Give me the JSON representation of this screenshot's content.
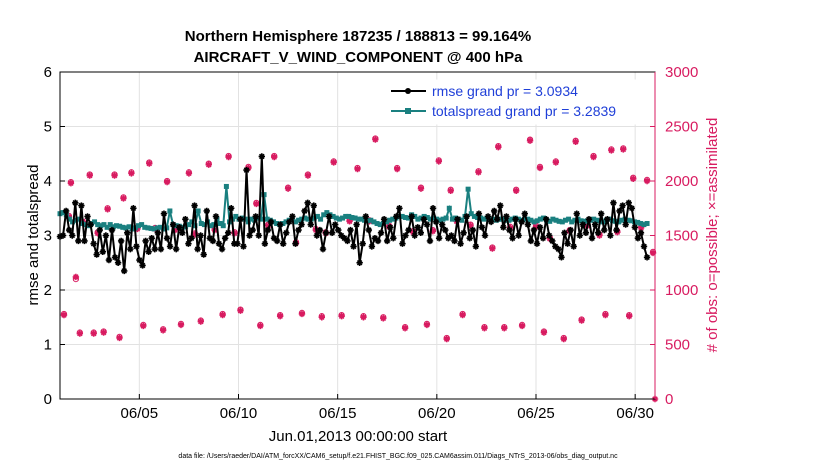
{
  "chart_data": {
    "type": "line",
    "title": "Northern Hemisphere 187235 / 188813 = 99.164%",
    "subtitle": "AIRCRAFT_V_WIND_COMPONENT @ 400 hPa",
    "xlabel": "Jun.01,2013 00:00:00 start",
    "ylabel_left": "rmse and totalspread",
    "ylabel_right": "# of obs: o=possible; ×=assimilated",
    "x_tick_labels": [
      "06/05",
      "06/10",
      "06/15",
      "06/20",
      "06/25",
      "06/30"
    ],
    "x_tick_days": [
      5,
      10,
      15,
      20,
      25,
      30
    ],
    "xlim": [
      1,
      31
    ],
    "ylim_left": [
      0,
      6
    ],
    "ylim_right": [
      0,
      3000
    ],
    "y_ticks_left": [
      "0",
      "1",
      "2",
      "3",
      "4",
      "5",
      "6"
    ],
    "y_ticks_right": [
      "0",
      "500",
      "1000",
      "1500",
      "2000",
      "2500",
      "3000"
    ],
    "footnote": "data file: /Users/raeder/DAI/ATM_forcXX/CAM6_setup/f.e21.FHIST_BGC.f09_025.CAM6assim.011/Diags_NTrS_2013-06/obs_diag_output.nc",
    "colors": {
      "rmse": "#000000",
      "spread": "#1a8080",
      "obs": "#d81b60"
    },
    "series": [
      {
        "name": "rmse",
        "legend": "rmse grand pr = 3.0934",
        "axis": "left",
        "marker": "star",
        "values": [
          2.98,
          3.0,
          3.45,
          3.1,
          3.0,
          3.6,
          2.9,
          3.55,
          2.9,
          3.35,
          3.2,
          2.85,
          2.65,
          3.1,
          2.7,
          3.0,
          2.55,
          3.1,
          2.6,
          2.5,
          2.9,
          2.35,
          3.05,
          2.75,
          3.5,
          2.8,
          2.55,
          2.45,
          2.9,
          2.7,
          2.95,
          2.75,
          3.05,
          2.75,
          3.4,
          2.95,
          2.8,
          3.2,
          2.75,
          3.15,
          3.05,
          3.3,
          2.85,
          2.95,
          3.55,
          2.75,
          3.0,
          2.65,
          3.45,
          2.95,
          2.9,
          3.35,
          2.85,
          2.75,
          2.95,
          3.05,
          3.5,
          2.85,
          2.85,
          3.3,
          2.8,
          4.2,
          3.0,
          3.1,
          3.35,
          3.0,
          4.45,
          2.85,
          3.1,
          3.25,
          2.95,
          2.9,
          3.2,
          2.85,
          3.05,
          3.25,
          3.35,
          2.85,
          3.1,
          3.2,
          3.45,
          3.6,
          3.2,
          3.55,
          3.0,
          3.1,
          2.75,
          3.05,
          3.35,
          3.05,
          3.2,
          3.1,
          3.0,
          2.95,
          2.9,
          3.1,
          2.8,
          3.2,
          2.5,
          2.85,
          3.35,
          3.1,
          2.8,
          2.95,
          2.9,
          3.05,
          3.3,
          2.9,
          3.15,
          2.95,
          3.35,
          3.5,
          2.85,
          3.0,
          3.1,
          3.35,
          3.0,
          3.15,
          3.05,
          3.3,
          3.2,
          2.9,
          3.5,
          3.25,
          2.95,
          3.2,
          3.1,
          2.95,
          3.0,
          2.9,
          3.3,
          2.85,
          3.05,
          3.35,
          2.95,
          3.1,
          2.8,
          3.4,
          3.15,
          3.0,
          3.35,
          3.25,
          3.45,
          3.3,
          3.55,
          3.15,
          3.35,
          3.1,
          2.95,
          3.3,
          3.0,
          3.25,
          3.4,
          3.2,
          2.9,
          3.1,
          2.85,
          3.15,
          2.95,
          3.3,
          3.0,
          2.9,
          2.8,
          2.75,
          2.6,
          3.05,
          2.85,
          3.1,
          2.8,
          3.4,
          3.0,
          3.2,
          3.05,
          3.3,
          2.95,
          3.2,
          3.05,
          3.4,
          3.1,
          3.3,
          3.0,
          3.6,
          3.1,
          3.45,
          3.55,
          3.2,
          3.6,
          3.5,
          3.15,
          2.95,
          3.05,
          2.8,
          2.6
        ]
      },
      {
        "name": "totalspread",
        "legend": "totalspread grand pr = 3.2839",
        "axis": "left",
        "marker": "square",
        "values": [
          3.4,
          3.42,
          3.38,
          3.3,
          3.25,
          3.28,
          3.3,
          3.22,
          3.2,
          3.18,
          3.22,
          3.25,
          3.2,
          3.18,
          3.2,
          3.15,
          3.2,
          3.16,
          3.18,
          3.17,
          3.15,
          3.14,
          3.16,
          3.12,
          3.14,
          3.18,
          3.2,
          3.15,
          3.14,
          3.13,
          3.12,
          3.14,
          3.15,
          3.12,
          3.14,
          3.45,
          3.2,
          3.18,
          3.17,
          3.15,
          3.16,
          3.2,
          3.25,
          3.18,
          3.45,
          3.22,
          3.2,
          3.25,
          3.18,
          3.2,
          3.3,
          3.22,
          3.18,
          3.9,
          3.25,
          3.3,
          3.35,
          3.3,
          3.32,
          3.3,
          3.25,
          3.3,
          3.28,
          3.32,
          3.3,
          3.75,
          3.3,
          3.28,
          3.25,
          3.22,
          3.2,
          3.22,
          3.25,
          3.28,
          3.3,
          3.25,
          3.28,
          3.3,
          3.32,
          3.3,
          3.3,
          3.32,
          3.35,
          3.3,
          3.38,
          3.42,
          3.38,
          3.35,
          3.32,
          3.3,
          3.32,
          3.35,
          3.35,
          3.33,
          3.32,
          3.3,
          3.3,
          3.28,
          3.27,
          3.28,
          3.25,
          3.22,
          3.2,
          3.22,
          3.25,
          3.28,
          3.3,
          3.32,
          3.35,
          3.35,
          3.33,
          3.32,
          3.38,
          3.35,
          3.3,
          3.32,
          3.35,
          3.33,
          3.3,
          3.32,
          3.3,
          3.28,
          3.3,
          3.32,
          3.5,
          3.3,
          3.32,
          3.3,
          3.28,
          3.35,
          3.85,
          3.4,
          3.35,
          3.33,
          3.32,
          3.3,
          3.32,
          3.3,
          3.3,
          3.28,
          3.3,
          3.3,
          3.28,
          3.28,
          3.3,
          3.32,
          3.3,
          3.28,
          3.3,
          3.3,
          3.28,
          3.25,
          3.27,
          3.3,
          3.32,
          3.28,
          3.26,
          3.3,
          3.28,
          3.26,
          3.25,
          3.28,
          3.3,
          3.25,
          3.28,
          3.3,
          3.27,
          3.26,
          3.27,
          3.28,
          3.3,
          3.28,
          3.27,
          3.25,
          3.28,
          3.3,
          3.27,
          3.26,
          3.25,
          3.28,
          3.3,
          3.28,
          3.27,
          3.25,
          3.24,
          3.22,
          3.2,
          3.22
        ]
      },
      {
        "name": "obs_possible",
        "axis": "right",
        "marker": "circle",
        "values": [
          [
            1.2,
            780
          ],
          [
            1.45,
            1680
          ],
          [
            1.55,
            1990
          ],
          [
            1.8,
            1100
          ],
          [
            2.0,
            610
          ],
          [
            2.15,
            1620
          ],
          [
            2.5,
            2060
          ],
          [
            2.7,
            610
          ],
          [
            2.9,
            1530
          ],
          [
            3.2,
            620
          ],
          [
            3.4,
            1750
          ],
          [
            3.75,
            2060
          ],
          [
            4.0,
            570
          ],
          [
            4.2,
            1850
          ],
          [
            4.6,
            2080
          ],
          [
            4.9,
            1570
          ],
          [
            5.2,
            680
          ],
          [
            5.5,
            2170
          ],
          [
            5.8,
            1570
          ],
          [
            6.2,
            640
          ],
          [
            6.4,
            2000
          ],
          [
            6.8,
            1560
          ],
          [
            7.1,
            690
          ],
          [
            7.5,
            2080
          ],
          [
            7.8,
            1520
          ],
          [
            8.1,
            720
          ],
          [
            8.5,
            2160
          ],
          [
            8.8,
            1560
          ],
          [
            9.2,
            780
          ],
          [
            9.5,
            2230
          ],
          [
            9.8,
            1530
          ],
          [
            10.1,
            820
          ],
          [
            10.5,
            2130
          ],
          [
            10.9,
            1800
          ],
          [
            11.1,
            680
          ],
          [
            11.5,
            1600
          ],
          [
            11.8,
            2230
          ],
          [
            12.1,
            770
          ],
          [
            12.5,
            1940
          ],
          [
            12.9,
            1440
          ],
          [
            13.2,
            790
          ],
          [
            13.5,
            2060
          ],
          [
            13.9,
            1560
          ],
          [
            14.2,
            760
          ],
          [
            14.4,
            1530
          ],
          [
            14.8,
            2180
          ],
          [
            15.2,
            770
          ],
          [
            15.6,
            1640
          ],
          [
            16.0,
            2120
          ],
          [
            16.3,
            760
          ],
          [
            16.6,
            1640
          ],
          [
            16.9,
            2390
          ],
          [
            17.3,
            750
          ],
          [
            17.6,
            1590
          ],
          [
            18.0,
            2120
          ],
          [
            18.4,
            660
          ],
          [
            18.8,
            1540
          ],
          [
            19.2,
            1940
          ],
          [
            19.5,
            690
          ],
          [
            19.8,
            1550
          ],
          [
            20.1,
            2190
          ],
          [
            20.5,
            560
          ],
          [
            20.7,
            1920
          ],
          [
            21.0,
            1640
          ],
          [
            21.3,
            780
          ],
          [
            21.7,
            1600
          ],
          [
            22.1,
            2090
          ],
          [
            22.4,
            660
          ],
          [
            22.8,
            1390
          ],
          [
            23.1,
            2320
          ],
          [
            23.4,
            660
          ],
          [
            23.7,
            1580
          ],
          [
            24.0,
            1920
          ],
          [
            24.3,
            680
          ],
          [
            24.7,
            2380
          ],
          [
            25.0,
            1590
          ],
          [
            25.2,
            2130
          ],
          [
            25.4,
            620
          ],
          [
            25.7,
            1480
          ],
          [
            26.0,
            2180
          ],
          [
            26.4,
            560
          ],
          [
            26.7,
            1550
          ],
          [
            27.0,
            2370
          ],
          [
            27.3,
            730
          ],
          [
            27.6,
            1600
          ],
          [
            27.9,
            2230
          ],
          [
            28.2,
            1510
          ],
          [
            28.5,
            780
          ],
          [
            28.8,
            2290
          ],
          [
            29.1,
            1540
          ],
          [
            29.4,
            2300
          ],
          [
            29.7,
            770
          ],
          [
            29.9,
            2030
          ],
          [
            30.3,
            1580
          ],
          [
            30.6,
            2010
          ],
          [
            30.9,
            1350
          ]
        ]
      },
      {
        "name": "obs_assimilated",
        "axis": "right",
        "marker": "star",
        "values": [
          [
            1.2,
            770
          ],
          [
            1.45,
            1670
          ],
          [
            1.55,
            1980
          ],
          [
            1.8,
            1120
          ],
          [
            2.0,
            600
          ],
          [
            2.15,
            1630
          ],
          [
            2.5,
            2050
          ],
          [
            2.7,
            600
          ],
          [
            2.9,
            1520
          ],
          [
            3.2,
            610
          ],
          [
            3.4,
            1740
          ],
          [
            3.75,
            2050
          ],
          [
            4.0,
            560
          ],
          [
            4.2,
            1840
          ],
          [
            4.6,
            2070
          ],
          [
            4.9,
            1560
          ],
          [
            5.2,
            670
          ],
          [
            5.5,
            2160
          ],
          [
            5.8,
            1560
          ],
          [
            6.2,
            630
          ],
          [
            6.4,
            1990
          ],
          [
            6.8,
            1550
          ],
          [
            7.1,
            680
          ],
          [
            7.5,
            2070
          ],
          [
            7.8,
            1510
          ],
          [
            8.1,
            710
          ],
          [
            8.5,
            2150
          ],
          [
            8.8,
            1550
          ],
          [
            9.2,
            770
          ],
          [
            9.5,
            2220
          ],
          [
            9.8,
            1520
          ],
          [
            10.1,
            810
          ],
          [
            10.5,
            2120
          ],
          [
            10.9,
            1790
          ],
          [
            11.1,
            670
          ],
          [
            11.5,
            1590
          ],
          [
            11.8,
            2220
          ],
          [
            12.1,
            760
          ],
          [
            12.5,
            1930
          ],
          [
            12.9,
            1430
          ],
          [
            13.2,
            780
          ],
          [
            13.5,
            2050
          ],
          [
            13.9,
            1550
          ],
          [
            14.2,
            750
          ],
          [
            14.4,
            1520
          ],
          [
            14.8,
            2170
          ],
          [
            15.2,
            760
          ],
          [
            15.6,
            1630
          ],
          [
            16.0,
            2110
          ],
          [
            16.3,
            750
          ],
          [
            16.6,
            1630
          ],
          [
            16.9,
            2380
          ],
          [
            17.3,
            740
          ],
          [
            17.6,
            1580
          ],
          [
            18.0,
            2110
          ],
          [
            18.4,
            650
          ],
          [
            18.8,
            1530
          ],
          [
            19.2,
            1930
          ],
          [
            19.5,
            680
          ],
          [
            19.8,
            1540
          ],
          [
            20.1,
            2180
          ],
          [
            20.5,
            550
          ],
          [
            20.7,
            1910
          ],
          [
            21.0,
            1630
          ],
          [
            21.3,
            770
          ],
          [
            21.7,
            1590
          ],
          [
            22.1,
            2080
          ],
          [
            22.4,
            650
          ],
          [
            22.8,
            1380
          ],
          [
            23.1,
            2310
          ],
          [
            23.4,
            650
          ],
          [
            23.7,
            1570
          ],
          [
            24.0,
            1910
          ],
          [
            24.3,
            670
          ],
          [
            24.7,
            2370
          ],
          [
            25.0,
            1580
          ],
          [
            25.2,
            2120
          ],
          [
            25.4,
            610
          ],
          [
            25.7,
            1470
          ],
          [
            26.0,
            2170
          ],
          [
            26.4,
            550
          ],
          [
            26.7,
            1540
          ],
          [
            27.0,
            2360
          ],
          [
            27.3,
            720
          ],
          [
            27.6,
            1590
          ],
          [
            27.9,
            2220
          ],
          [
            28.2,
            1500
          ],
          [
            28.5,
            770
          ],
          [
            28.8,
            2280
          ],
          [
            29.1,
            1530
          ],
          [
            29.4,
            2290
          ],
          [
            29.7,
            760
          ],
          [
            29.9,
            2020
          ],
          [
            30.3,
            1570
          ],
          [
            30.6,
            2000
          ],
          [
            30.9,
            1340
          ],
          [
            31.0,
            0
          ]
        ]
      }
    ]
  }
}
